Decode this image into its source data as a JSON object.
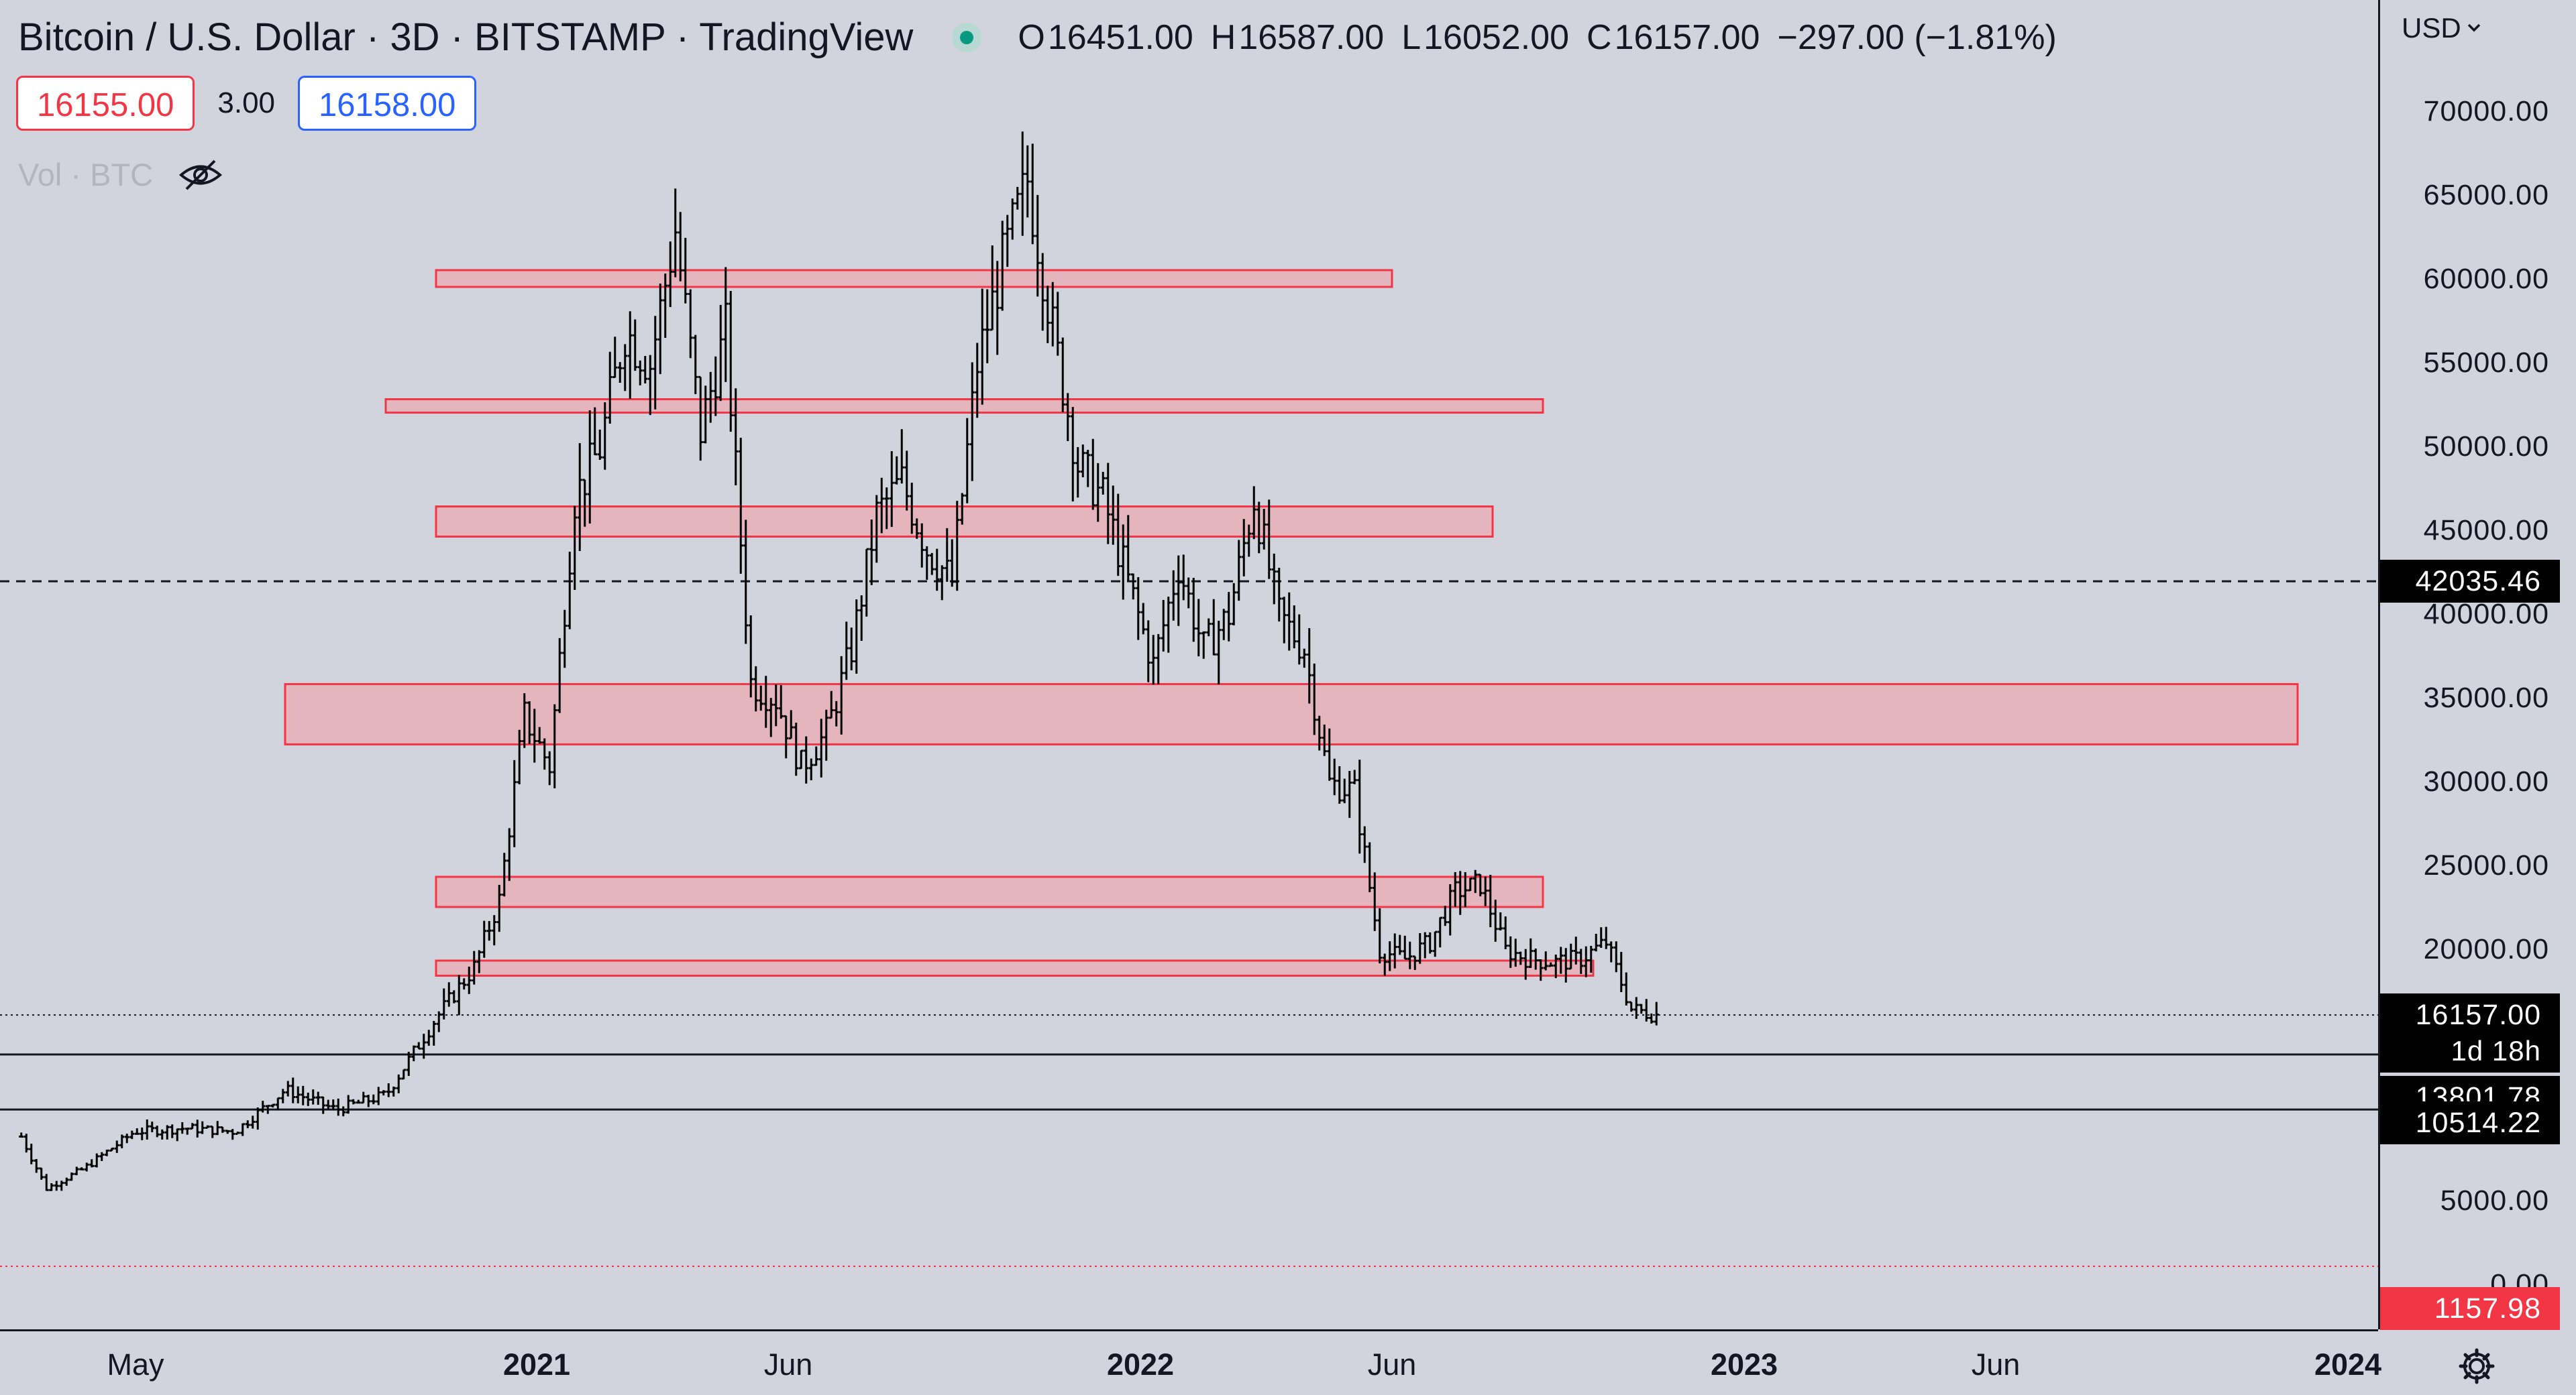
{
  "header": {
    "title": "Bitcoin / U.S. Dollar · 3D · BITSTAMP · TradingView",
    "ohlc": {
      "open_key": "O",
      "open": "16451.00",
      "high_key": "H",
      "high": "16587.00",
      "low_key": "L",
      "low": "16052.00",
      "close_key": "C",
      "close": "16157.00",
      "change": "−297.00 (−1.81%)"
    },
    "status_color": "#089981"
  },
  "trade": {
    "sell_price": "16155.00",
    "spread": "3.00",
    "buy_price": "16158.00"
  },
  "volume_indicator": {
    "label": "Vol · BTC",
    "icon": "eye-off-icon"
  },
  "currency": "USD",
  "price_axis": {
    "ticks": [
      "70000.00",
      "65000.00",
      "60000.00",
      "55000.00",
      "50000.00",
      "45000.00",
      "40000.00",
      "35000.00",
      "30000.00",
      "25000.00",
      "20000.00",
      "5000.00",
      "0.00"
    ],
    "badges": {
      "dashed_level": "42035.46",
      "last_price": "16157.00",
      "countdown": "1d 18h",
      "level_1": "13801.78",
      "level_2": "10514.22",
      "red_level": "1157.98"
    }
  },
  "time_axis": {
    "labels": [
      {
        "text": "May",
        "bold": false
      },
      {
        "text": "2021",
        "bold": true
      },
      {
        "text": "Jun",
        "bold": false
      },
      {
        "text": "2022",
        "bold": true
      },
      {
        "text": "Jun",
        "bold": false
      },
      {
        "text": "2023",
        "bold": true
      },
      {
        "text": "Jun",
        "bold": false
      },
      {
        "text": "2024",
        "bold": true
      }
    ]
  },
  "colors": {
    "background": "#d1d4dc",
    "zone_fill": "#f0a0a8",
    "zone_stroke": "#f23645",
    "candle": "#000000",
    "accent_sell": "#f23645",
    "accent_buy": "#2962ff"
  },
  "chart_data": {
    "type": "ohlc",
    "symbol": "Bitcoin / U.S. Dollar",
    "interval": "3D",
    "exchange": "BITSTAMP",
    "y_axis_unit": "USD",
    "horizontal_levels": [
      42035.46,
      13801.78,
      10514.22,
      1157.98
    ],
    "last_price": 16157.0,
    "zones": [
      {
        "low": 59600,
        "high": 60600,
        "from": "2020-11",
        "to": "2022-06"
      },
      {
        "low": 52100,
        "high": 52900,
        "from": "2020-10",
        "to": "2022-09"
      },
      {
        "low": 44700,
        "high": 46500,
        "from": "2020-11",
        "to": "2022-08"
      },
      {
        "low": 32300,
        "high": 35900,
        "from": "2020-08",
        "to": "2023-12"
      },
      {
        "low": 22600,
        "high": 24400,
        "from": "2020-11",
        "to": "2022-09"
      },
      {
        "low": 18500,
        "high": 19400,
        "from": "2020-11",
        "to": "2022-10"
      }
    ],
    "close_path": [
      [
        "2020-03",
        8900
      ],
      [
        "2020-03",
        5800
      ],
      [
        "2020-04",
        7000
      ],
      [
        "2020-05",
        9200
      ],
      [
        "2020-06",
        9400
      ],
      [
        "2020-07",
        9200
      ],
      [
        "2020-08",
        11700
      ],
      [
        "2020-09",
        10500
      ],
      [
        "2020-10",
        11400
      ],
      [
        "2020-11",
        16000
      ],
      [
        "2020-12",
        19000
      ],
      [
        "2020-12",
        23000
      ],
      [
        "2021-01",
        34000
      ],
      [
        "2021-01",
        31000
      ],
      [
        "2021-02",
        47000
      ],
      [
        "2021-02",
        50000
      ],
      [
        "2021-03",
        57000
      ],
      [
        "2021-03",
        55000
      ],
      [
        "2021-04",
        63000
      ],
      [
        "2021-04",
        51000
      ],
      [
        "2021-05",
        57000
      ],
      [
        "2021-05",
        36000
      ],
      [
        "2021-06",
        35000
      ],
      [
        "2021-06",
        31000
      ],
      [
        "2021-07",
        33000
      ],
      [
        "2021-07",
        38000
      ],
      [
        "2021-08",
        46000
      ],
      [
        "2021-08",
        48000
      ],
      [
        "2021-09",
        44000
      ],
      [
        "2021-09",
        42000
      ],
      [
        "2021-10",
        55000
      ],
      [
        "2021-10",
        61000
      ],
      [
        "2021-11",
        66000
      ],
      [
        "2021-11",
        57000
      ],
      [
        "2021-12",
        49000
      ],
      [
        "2021-12",
        47000
      ],
      [
        "2022-01",
        42000
      ],
      [
        "2022-01",
        37000
      ],
      [
        "2022-02",
        43000
      ],
      [
        "2022-02",
        38000
      ],
      [
        "2022-03",
        40000
      ],
      [
        "2022-03",
        47000
      ],
      [
        "2022-04",
        40000
      ],
      [
        "2022-04",
        38000
      ],
      [
        "2022-05",
        30000
      ],
      [
        "2022-05",
        29500
      ],
      [
        "2022-06",
        20000
      ],
      [
        "2022-06",
        19500
      ],
      [
        "2022-07",
        20500
      ],
      [
        "2022-07",
        23500
      ],
      [
        "2022-08",
        24000
      ],
      [
        "2022-08",
        20000
      ],
      [
        "2022-09",
        19500
      ],
      [
        "2022-09",
        19300
      ],
      [
        "2022-10",
        19500
      ],
      [
        "2022-10",
        20500
      ],
      [
        "2022-11",
        16500
      ],
      [
        "2022-11",
        16157
      ]
    ]
  }
}
